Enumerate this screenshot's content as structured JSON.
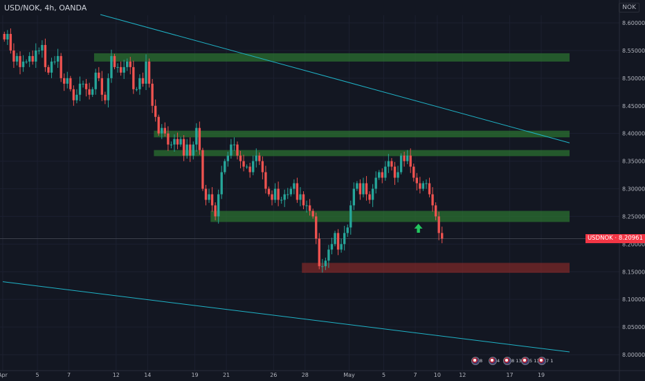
{
  "header": {
    "title": "USD/NOK, 4h, OANDA",
    "currency_badge": "NOK"
  },
  "price_tag": {
    "symbol": "USDNOK",
    "value": "8.20961"
  },
  "colors": {
    "background": "#131722",
    "bull": "#26a69a",
    "bear": "#ef5350",
    "zone_green": "#2e7d32",
    "zone_red": "#8b2a2a",
    "trendline": "#1fb4c8",
    "arrow": "#22c55e"
  },
  "events": [
    "8",
    "4",
    "8 13",
    "5 13",
    "7 1"
  ],
  "chart_data": {
    "type": "candlestick",
    "title": "USD/NOK, 4h, OANDA",
    "y_axis": {
      "labels": [
        "8.60000",
        "8.55000",
        "8.50000",
        "8.45000",
        "8.40000",
        "8.35000",
        "8.30000",
        "8.25000",
        "8.20000",
        "8.15000",
        "8.10000",
        "8.05000",
        "8.00000"
      ],
      "ylim": [
        7.99,
        8.615
      ]
    },
    "x_axis": {
      "labels": [
        {
          "label": "Apr",
          "bar": 0
        },
        {
          "label": "5",
          "bar": 11
        },
        {
          "label": "7",
          "bar": 21
        },
        {
          "label": "12",
          "bar": 36
        },
        {
          "label": "14",
          "bar": 46
        },
        {
          "label": "19",
          "bar": 61
        },
        {
          "label": "21",
          "bar": 71
        },
        {
          "label": "26",
          "bar": 86
        },
        {
          "label": "28",
          "bar": 96
        },
        {
          "label": "May",
          "bar": 110
        },
        {
          "label": "5",
          "bar": 121
        },
        {
          "label": "7",
          "bar": 131
        },
        {
          "label": "10",
          "bar": 138
        },
        {
          "label": "12",
          "bar": 146
        },
        {
          "label": "17",
          "bar": 161
        },
        {
          "label": "19",
          "bar": 171
        }
      ],
      "bar_count": 180
    },
    "last_price": 8.20961,
    "closes": [
      8.57,
      8.58,
      8.55,
      8.53,
      8.54,
      8.52,
      8.53,
      8.53,
      8.54,
      8.53,
      8.55,
      8.55,
      8.56,
      8.52,
      8.51,
      8.53,
      8.53,
      8.54,
      8.5,
      8.49,
      8.5,
      8.48,
      8.46,
      8.47,
      8.49,
      8.49,
      8.48,
      8.47,
      8.48,
      8.51,
      8.5,
      8.47,
      8.46,
      8.5,
      8.54,
      8.52,
      8.52,
      8.51,
      8.52,
      8.53,
      8.52,
      8.48,
      8.48,
      8.5,
      8.49,
      8.53,
      8.49,
      8.45,
      8.43,
      8.4,
      8.41,
      8.4,
      8.38,
      8.38,
      8.39,
      8.38,
      8.39,
      8.36,
      8.38,
      8.36,
      8.38,
      8.41,
      8.37,
      8.3,
      8.28,
      8.29,
      8.27,
      8.25,
      8.29,
      8.33,
      8.35,
      8.36,
      8.38,
      8.38,
      8.36,
      8.35,
      8.34,
      8.34,
      8.33,
      8.35,
      8.36,
      8.35,
      8.33,
      8.3,
      8.29,
      8.28,
      8.3,
      8.28,
      8.28,
      8.29,
      8.29,
      8.3,
      8.31,
      8.28,
      8.29,
      8.27,
      8.27,
      8.26,
      8.25,
      8.21,
      8.16,
      8.16,
      8.17,
      8.19,
      8.2,
      8.22,
      8.19,
      8.2,
      8.22,
      8.23,
      8.27,
      8.3,
      8.31,
      8.29,
      8.31,
      8.29,
      8.28,
      8.3,
      8.32,
      8.33,
      8.32,
      8.34,
      8.35,
      8.34,
      8.32,
      8.33,
      8.36,
      8.35,
      8.36,
      8.34,
      8.32,
      8.31,
      8.3,
      8.31,
      8.31,
      8.29,
      8.27,
      8.25,
      8.22,
      8.21
    ],
    "zones": [
      {
        "kind": "resistance",
        "from_bar": 29,
        "to_bar": 180,
        "y_low": 8.53,
        "y_high": 8.545
      },
      {
        "kind": "resistance",
        "from_bar": 48,
        "to_bar": 180,
        "y_low": 8.393,
        "y_high": 8.405
      },
      {
        "kind": "resistance",
        "from_bar": 48,
        "to_bar": 180,
        "y_low": 8.359,
        "y_high": 8.37
      },
      {
        "kind": "support",
        "from_bar": 66,
        "to_bar": 180,
        "y_low": 8.24,
        "y_high": 8.26
      },
      {
        "kind": "demand",
        "from_bar": 95,
        "to_bar": 180,
        "y_low": 8.148,
        "y_high": 8.166
      }
    ],
    "trendlines": [
      {
        "from": [
          31,
          8.615
        ],
        "to": [
          180,
          8.383
        ]
      },
      {
        "from": [
          0,
          8.132
        ],
        "to": [
          180,
          8.005
        ]
      }
    ],
    "arrow": {
      "bar": 132,
      "price": 8.228,
      "direction": "up"
    }
  }
}
